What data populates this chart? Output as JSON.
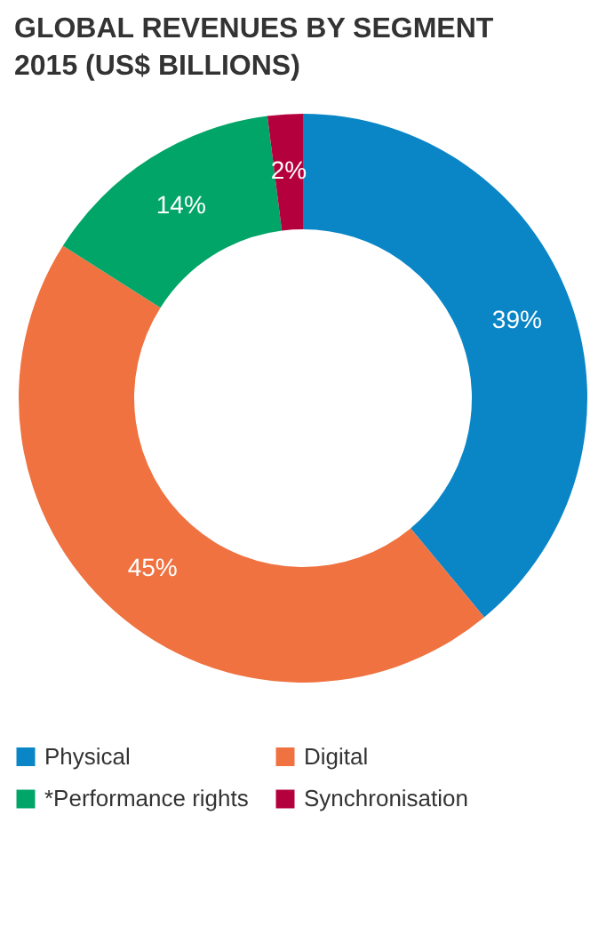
{
  "chart_data": {
    "type": "donut",
    "title": "GLOBAL REVENUES BY SEGMENT\n2015 (US$ BILLIONS)",
    "categories": [
      "Physical",
      "Digital",
      "*Performance rights",
      "Synchronisation"
    ],
    "values": [
      39,
      45,
      14,
      2
    ],
    "value_labels": [
      "39%",
      "45%",
      "14%",
      "2%"
    ],
    "colors": [
      "#0a86c7",
      "#ef7240",
      "#00a567",
      "#b4003c"
    ],
    "legend": "bottom"
  }
}
